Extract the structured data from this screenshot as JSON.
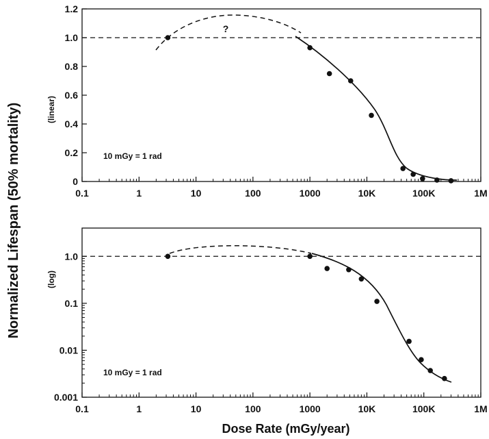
{
  "chart_data": [
    {
      "type": "scatter",
      "panel": "top",
      "scale": "linear",
      "ylabel": "(linear)",
      "ylim": [
        0,
        1.2
      ],
      "y_ticks": [
        "0",
        "0.2",
        "0.4",
        "0.6",
        "0.8",
        "1.0",
        "1.2"
      ],
      "xlim": [
        0.1,
        1000000
      ],
      "x_ticks": [
        "0.1",
        "1",
        "10",
        "100",
        "1000",
        "10K",
        "100K",
        "1M"
      ],
      "grid": false,
      "reference_line": 1.0,
      "annotation": "?",
      "note": "10 mGy = 1 rad",
      "series": [
        {
          "x": [
            3.2,
            1000,
            2200,
            5200,
            12000,
            43000,
            65000,
            95000,
            170000,
            300000
          ],
          "y": [
            1.0,
            0.93,
            0.75,
            0.7,
            0.46,
            0.09,
            0.05,
            0.02,
            0.01,
            0.005
          ]
        }
      ]
    },
    {
      "type": "scatter",
      "panel": "bottom",
      "scale": "log",
      "ylabel": "(log)",
      "ylim": [
        0.001,
        4
      ],
      "y_ticks": [
        "0.001",
        "0.01",
        "0.1",
        "1.0"
      ],
      "xlim": [
        0.1,
        1000000
      ],
      "x_ticks": [
        "0.1",
        "1",
        "10",
        "100",
        "1000",
        "10K",
        "100K",
        "1M"
      ],
      "xlabel": "Dose Rate (mGy/year)",
      "grid": false,
      "reference_line": 1.0,
      "note": "10 mGy = 1 rad",
      "series": [
        {
          "x": [
            3.2,
            1000,
            2000,
            4800,
            8000,
            15000,
            55000,
            90000,
            130000,
            230000
          ],
          "y": [
            1.0,
            1.0,
            0.55,
            0.52,
            0.33,
            0.11,
            0.0155,
            0.0063,
            0.0037,
            0.0025
          ]
        }
      ]
    }
  ],
  "shared_ylabel": "Normalized Lifespan (50% mortality)"
}
